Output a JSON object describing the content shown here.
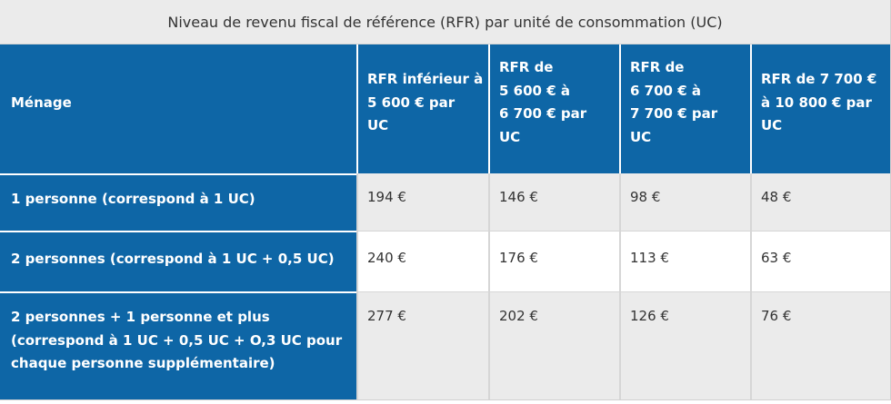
{
  "caption": "Niveau de revenu fiscal de référence (RFR) par unité de consommation (UC)",
  "header": {
    "menage": "Ménage",
    "col1_lines": [
      "RFR inférieur à",
      "5 600 € par",
      "UC"
    ],
    "col2_lines": [
      "RFR de",
      "5 600 € à",
      "6 700 € par",
      "UC"
    ],
    "col3_lines": [
      "RFR de",
      "6 700 € à",
      "7 700 € par",
      "UC"
    ],
    "col4_lines": [
      "RFR de 7 700 €",
      "à 10 800 € par",
      "UC"
    ]
  },
  "rows": [
    {
      "label_lines": [
        "1 personne (correspond à 1 UC)"
      ],
      "values": [
        "194 €",
        "146 €",
        "98 €",
        "48 €"
      ]
    },
    {
      "label_lines": [
        "2 personnes (correspond à 1 UC + 0,5 UC)"
      ],
      "values": [
        "240 €",
        "176 €",
        "113 €",
        "63 €"
      ]
    },
    {
      "label_lines": [
        "2 personnes + 1 personne et plus",
        "(correspond à 1 UC + 0,5 UC + O,3 UC pour",
        "chaque personne supplémentaire)"
      ],
      "values": [
        "277 €",
        "202 €",
        "126 €",
        "76 €"
      ]
    }
  ]
}
